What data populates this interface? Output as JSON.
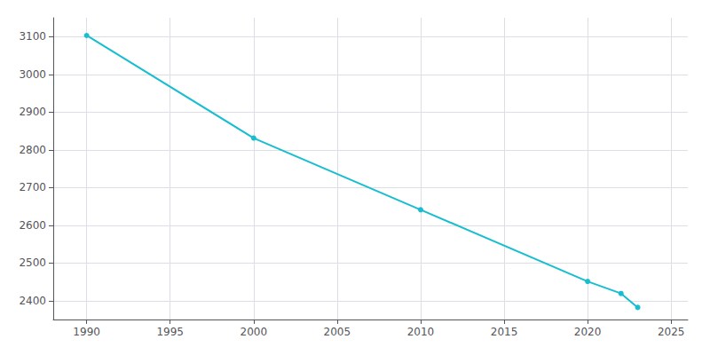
{
  "chart_data": {
    "type": "line",
    "x": [
      1990,
      2000,
      2010,
      2020,
      2022,
      2023
    ],
    "values": [
      3103,
      2831,
      2641,
      2451,
      2419,
      2382
    ],
    "color": "#17becf",
    "marker": "circle",
    "xlim": [
      1988,
      2026
    ],
    "ylim": [
      2350,
      3150
    ],
    "xticks": [
      1990,
      1995,
      2000,
      2005,
      2010,
      2015,
      2020,
      2025
    ],
    "yticks": [
      2400,
      2500,
      2600,
      2700,
      2800,
      2900,
      3000,
      3100
    ],
    "grid": true
  }
}
